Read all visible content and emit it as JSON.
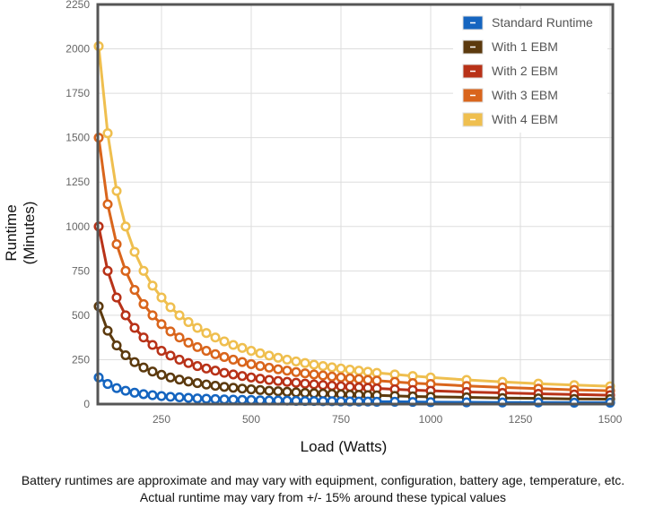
{
  "chart_data": {
    "type": "line",
    "xlabel": "Load (Watts)",
    "ylabel": [
      "Runtime",
      "(Minutes)"
    ],
    "xlim": [
      80,
      1500
    ],
    "ylim": [
      0,
      2250
    ],
    "xticks": [
      250,
      500,
      750,
      1000,
      1250,
      1500
    ],
    "yticks": [
      0,
      250,
      500,
      750,
      1000,
      1250,
      1500,
      1750,
      2000,
      2250
    ],
    "grid": true,
    "legend_position": "top-right",
    "x": [
      75,
      100,
      125,
      150,
      175,
      200,
      225,
      250,
      275,
      300,
      325,
      350,
      375,
      400,
      425,
      450,
      475,
      500,
      525,
      550,
      575,
      600,
      625,
      650,
      675,
      700,
      725,
      750,
      775,
      800,
      825,
      850,
      900,
      950,
      1000,
      1100,
      1200,
      1300,
      1400,
      1500
    ],
    "series": [
      {
        "name": "Standard Runtime",
        "color": "#1565c0",
        "values": [
          150,
          113,
          90,
          75,
          64,
          56,
          50,
          45,
          41,
          38,
          35,
          32,
          30,
          28,
          26,
          25,
          24,
          23,
          21,
          20,
          20,
          19,
          18,
          17,
          17,
          16,
          16,
          15,
          15,
          14,
          14,
          13,
          13,
          12,
          11,
          10,
          9,
          9,
          8,
          8
        ]
      },
      {
        "name": "With 1 EBM",
        "color": "#5c3a0e",
        "values": [
          550,
          413,
          330,
          275,
          236,
          206,
          183,
          165,
          150,
          138,
          127,
          118,
          110,
          103,
          97,
          92,
          87,
          83,
          79,
          75,
          72,
          69,
          66,
          63,
          61,
          59,
          57,
          55,
          53,
          52,
          50,
          49,
          46,
          43,
          41,
          38,
          34,
          32,
          29,
          28
        ]
      },
      {
        "name": "With 2 EBM",
        "color": "#b83218",
        "values": [
          1000,
          750,
          600,
          500,
          429,
          375,
          333,
          300,
          273,
          250,
          231,
          214,
          200,
          188,
          176,
          167,
          158,
          150,
          143,
          136,
          130,
          125,
          120,
          115,
          111,
          107,
          103,
          100,
          97,
          94,
          91,
          88,
          83,
          79,
          75,
          68,
          63,
          58,
          54,
          50
        ]
      },
      {
        "name": "With 3 EBM",
        "color": "#d9651c",
        "values": [
          1500,
          1125,
          900,
          750,
          643,
          563,
          500,
          450,
          409,
          375,
          346,
          321,
          300,
          281,
          265,
          250,
          237,
          225,
          214,
          205,
          196,
          188,
          180,
          173,
          167,
          161,
          155,
          150,
          145,
          141,
          136,
          132,
          125,
          118,
          113,
          102,
          94,
          87,
          80,
          75
        ]
      },
      {
        "name": "With 4 EBM",
        "color": "#efbf4f",
        "values": [
          2015,
          1525,
          1200,
          1000,
          857,
          750,
          667,
          600,
          545,
          500,
          462,
          429,
          400,
          375,
          353,
          333,
          316,
          300,
          286,
          273,
          261,
          250,
          240,
          231,
          222,
          214,
          207,
          200,
          194,
          188,
          182,
          176,
          167,
          158,
          150,
          136,
          125,
          115,
          107,
          100
        ]
      }
    ]
  },
  "footer": {
    "line1": "Battery runtimes are approximate and may vary with equipment, configuration, battery age, temperature, etc.",
    "line2": "Actual runtime may vary from +/- 15% around these typical values"
  }
}
